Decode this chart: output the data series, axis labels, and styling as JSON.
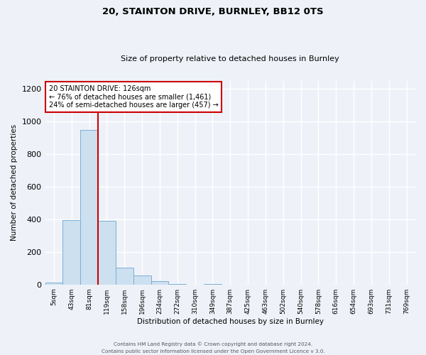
{
  "title1": "20, STAINTON DRIVE, BURNLEY, BB12 0TS",
  "title2": "Size of property relative to detached houses in Burnley",
  "xlabel": "Distribution of detached houses by size in Burnley",
  "ylabel": "Number of detached properties",
  "footnote1": "Contains HM Land Registry data © Crown copyright and database right 2024.",
  "footnote2": "Contains public sector information licensed under the Open Government Licence v 3.0.",
  "bar_labels": [
    "5sqm",
    "43sqm",
    "81sqm",
    "119sqm",
    "158sqm",
    "196sqm",
    "234sqm",
    "272sqm",
    "310sqm",
    "349sqm",
    "387sqm",
    "425sqm",
    "463sqm",
    "502sqm",
    "540sqm",
    "578sqm",
    "616sqm",
    "654sqm",
    "693sqm",
    "731sqm",
    "769sqm"
  ],
  "bar_values": [
    10,
    395,
    950,
    390,
    105,
    55,
    20,
    5,
    0,
    5,
    0,
    0,
    0,
    0,
    0,
    0,
    0,
    0,
    0,
    0,
    0
  ],
  "bar_color": "#cce0f0",
  "bar_edge_color": "#7aafd4",
  "ylim": [
    0,
    1250
  ],
  "yticks": [
    0,
    200,
    400,
    600,
    800,
    1000,
    1200
  ],
  "property_line_color": "#cc0000",
  "annotation_title": "20 STAINTON DRIVE: 126sqm",
  "annotation_line1": "← 76% of detached houses are smaller (1,461)",
  "annotation_line2": "24% of semi-detached houses are larger (457) →",
  "annotation_box_color": "#cc0000",
  "bg_color": "#eef2f8",
  "grid_color": "#ffffff"
}
